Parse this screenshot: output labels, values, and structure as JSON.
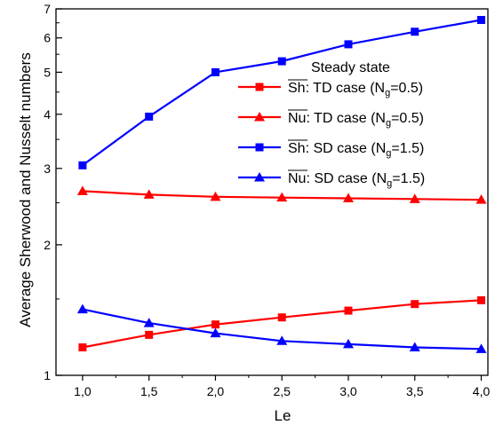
{
  "chart_data": {
    "type": "line",
    "xlabel": "Le",
    "ylabel": "Average Sherwood and Nusselt numbers",
    "x": [
      1.0,
      1.5,
      2.0,
      2.5,
      3.0,
      3.5,
      4.0
    ],
    "x_tick_labels": [
      "1,0",
      "1,5",
      "2,0",
      "2,5",
      "3,0",
      "3,5",
      "4,0"
    ],
    "xlim": [
      0.8,
      4.05
    ],
    "ylim": [
      1,
      7
    ],
    "y_scale": "log",
    "y_ticks": [
      1,
      2,
      3,
      4,
      5,
      6,
      7
    ],
    "grid": false,
    "legend": {
      "title": "Steady state",
      "placement": "right",
      "entries": [
        {
          "bar": "Sh",
          "text_a": ": TD case (N",
          "sub": "g",
          "text_b": "=0.5)"
        },
        {
          "bar": "Nu",
          "text_a": ": TD case (N",
          "sub": "g",
          "text_b": "=0.5)"
        },
        {
          "bar": "Sh",
          "text_a": ": SD case (N",
          "sub": "g",
          "text_b": "=1.5)"
        },
        {
          "bar": "Nu",
          "text_a": ": SD case (N",
          "sub": "g",
          "text_b": "=1.5)"
        }
      ]
    },
    "series": [
      {
        "color": "#ff0000",
        "marker": "square",
        "values": [
          1.16,
          1.24,
          1.31,
          1.36,
          1.41,
          1.46,
          1.49
        ]
      },
      {
        "color": "#ff0000",
        "marker": "triangle",
        "values": [
          2.66,
          2.61,
          2.58,
          2.57,
          2.56,
          2.55,
          2.54
        ]
      },
      {
        "color": "#0000ff",
        "marker": "square",
        "values": [
          3.05,
          3.95,
          5.0,
          5.3,
          5.8,
          6.2,
          6.6
        ]
      },
      {
        "color": "#0000ff",
        "marker": "triangle",
        "values": [
          1.42,
          1.32,
          1.25,
          1.2,
          1.18,
          1.16,
          1.15
        ]
      }
    ]
  }
}
